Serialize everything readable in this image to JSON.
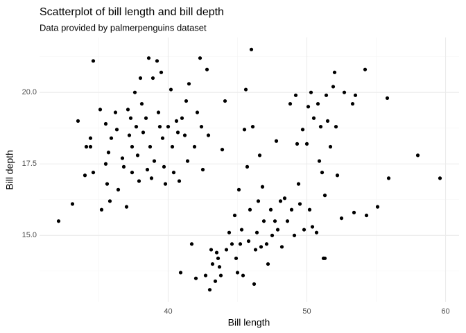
{
  "chart_data": {
    "type": "scatter",
    "title": "Scatterplot of bill length and bill depth",
    "subtitle": "Data provided by palmerpenguins dataset",
    "x_label": "Bill length",
    "y_label": "Bill depth",
    "color": "#000000",
    "grid": true,
    "xlim": [
      30.725,
      60.975
    ],
    "ylim": [
      12.68,
      21.92
    ],
    "xticks": [
      40,
      50,
      60
    ],
    "yticks": [
      {
        "value": 15,
        "label": "15.0"
      },
      {
        "value": 17.5,
        "label": "17.5"
      },
      {
        "value": 20,
        "label": "20.0"
      }
    ],
    "x_minor_ticks": [
      35,
      45,
      55
    ],
    "y_minor_ticks": [
      13.75,
      16.25,
      18.75,
      21.25
    ],
    "x": [
      32.1,
      33.1,
      33.5,
      34.6,
      34.1,
      34.4,
      34.4,
      34.0,
      34.6,
      35.2,
      35.1,
      35.5,
      35.5,
      35.6,
      35.7,
      35.8,
      36.2,
      36.3,
      35.9,
      36.4,
      36.7,
      36.8,
      37.0,
      37.1,
      37.2,
      37.3,
      37.4,
      37.4,
      37.6,
      37.7,
      37.8,
      37.9,
      38.0,
      38.1,
      38.2,
      38.4,
      38.5,
      38.6,
      38.7,
      38.8,
      38.9,
      39.0,
      39.2,
      39.3,
      39.4,
      39.5,
      39.6,
      39.7,
      39.8,
      40.0,
      40.2,
      40.3,
      40.4,
      40.6,
      40.7,
      40.8,
      40.9,
      41.0,
      41.2,
      41.3,
      41.4,
      41.5,
      41.7,
      41.9,
      42.0,
      42.1,
      42.3,
      42.4,
      42.5,
      42.7,
      42.8,
      42.9,
      43.0,
      43.1,
      43.2,
      43.4,
      43.5,
      43.6,
      43.7,
      43.8,
      43.9,
      44.1,
      44.2,
      44.4,
      44.6,
      44.8,
      44.9,
      45.0,
      45.1,
      45.2,
      45.3,
      45.4,
      45.5,
      45.6,
      45.7,
      45.8,
      45.9,
      46.0,
      46.1,
      46.2,
      46.3,
      46.4,
      46.5,
      46.6,
      46.7,
      46.8,
      46.9,
      47.1,
      47.2,
      47.4,
      47.5,
      47.7,
      47.8,
      47.9,
      48.1,
      48.2,
      48.4,
      48.6,
      48.8,
      48.9,
      49.1,
      49.2,
      49.3,
      49.4,
      49.5,
      49.7,
      49.8,
      50.0,
      50.1,
      50.2,
      50.3,
      50.4,
      50.5,
      50.7,
      50.8,
      50.9,
      51.0,
      51.1,
      51.2,
      51.3,
      51.3,
      51.4,
      51.5,
      51.7,
      51.9,
      52.0,
      52.1,
      52.2,
      52.5,
      52.7,
      53.3,
      53.4,
      53.5,
      54.2,
      54.3,
      55.1,
      55.8,
      55.9,
      58.0,
      59.6
    ],
    "values": [
      15.5,
      16.1,
      19.0,
      21.1,
      18.1,
      18.4,
      18.1,
      17.1,
      17.2,
      15.9,
      19.4,
      18.9,
      17.5,
      16.8,
      17.9,
      16.2,
      19.3,
      18.7,
      18.4,
      16.6,
      17.7,
      17.4,
      16.0,
      19.4,
      18.5,
      19.1,
      18.1,
      17.2,
      20.0,
      18.8,
      17.8,
      16.9,
      20.5,
      19.6,
      18.6,
      19.1,
      17.3,
      21.2,
      18.1,
      17.0,
      20.5,
      17.6,
      21.1,
      19.3,
      18.8,
      20.7,
      18.4,
      17.4,
      16.8,
      18.8,
      20.1,
      18.1,
      17.2,
      19.0,
      18.6,
      16.9,
      13.7,
      19.1,
      18.5,
      19.7,
      17.6,
      20.3,
      14.7,
      18.1,
      13.5,
      19.3,
      21.2,
      18.8,
      17.3,
      13.6,
      20.8,
      18.5,
      13.1,
      14.5,
      14.0,
      13.4,
      14.4,
      14.2,
      13.9,
      13.6,
      18.0,
      19.7,
      14.5,
      15.1,
      14.7,
      15.7,
      14.2,
      13.7,
      16.6,
      14.7,
      15.2,
      13.6,
      18.7,
      20.1,
      17.4,
      14.8,
      15.9,
      21.5,
      18.8,
      13.3,
      14.5,
      15.1,
      16.2,
      17.8,
      14.6,
      16.7,
      15.5,
      14.7,
      14.0,
      15.9,
      15.0,
      15.5,
      18.3,
      15.2,
      16.2,
      14.6,
      16.3,
      15.5,
      19.6,
      15.9,
      15.0,
      19.9,
      18.2,
      16.8,
      16.1,
      18.7,
      15.2,
      18.2,
      19.5,
      15.9,
      20.0,
      15.3,
      19.1,
      15.1,
      19.6,
      17.6,
      18.8,
      17.2,
      14.2,
      16.4,
      14.2,
      19.9,
      19.0,
      18.1,
      20.2,
      20.7,
      18.8,
      17.1,
      15.6,
      20.0,
      19.6,
      15.8,
      19.9,
      20.8,
      15.7,
      16.0,
      19.8,
      17.0,
      17.8,
      17.0
    ]
  }
}
